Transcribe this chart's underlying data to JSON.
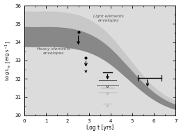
{
  "xlim": [
    0,
    7
  ],
  "ylim": [
    30,
    36
  ],
  "xlabel": "Log t [yrs]",
  "ylabel": "Log L$_{\\infty}$ [erg s$^{-1}$]",
  "light_label": "Light elements\nenvelopes",
  "heavy_label": "Heavy elements\nenvelopes",
  "bg_color": "#dcdcdc",
  "light_band_color": "#c8c8c8",
  "heavy_band_color": "#888888",
  "arrow_dark": "#000000",
  "arrow_gray": "#aaaaaa",
  "arrow_light": "#cccccc",
  "curves": {
    "light_top_y0": 35.7,
    "light_top_y1": 30.3,
    "light_bot_y0": 34.85,
    "light_bot_y1": 30.15,
    "heavy_bot_y0": 33.8,
    "heavy_bot_y1": 30.0,
    "x_knee": 4.9,
    "sharpness": 1.1
  }
}
